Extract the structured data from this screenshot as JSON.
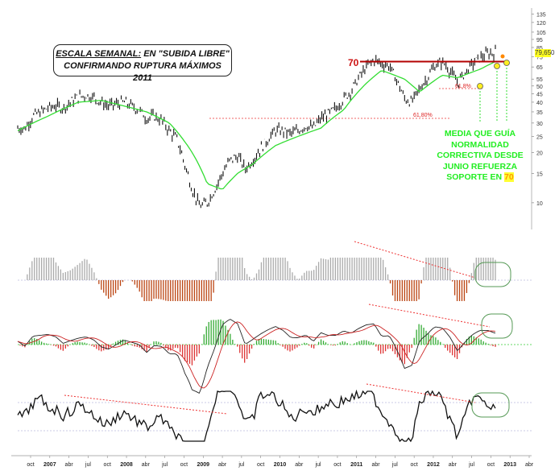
{
  "chart_data": {
    "type": "line",
    "title": "",
    "x_ticks": [
      "oct",
      "2007",
      "abr",
      "jul",
      "oct",
      "2008",
      "abr",
      "jul",
      "oct",
      "2009",
      "abr",
      "jul",
      "oct",
      "2010",
      "abr",
      "jul",
      "oct",
      "2011",
      "abr",
      "jul",
      "oct",
      "2012",
      "abr",
      "jul",
      "oct",
      "2013",
      "abr"
    ],
    "y_scale": "log",
    "y_ticks": [
      135,
      120,
      105,
      95,
      85,
      75,
      65,
      55,
      50,
      45,
      40,
      35,
      30,
      25,
      20,
      15,
      10
    ],
    "ylim": [
      8,
      140
    ],
    "last_price": "79,650",
    "resistance_level": 70,
    "resistance_label": "70",
    "fib_labels": [
      "61,8%",
      "61,80%"
    ],
    "annotation_box": {
      "line1_underlined": "ESCALA SEMANAL:",
      "line1_rest": " EN \"SUBIDA LIBRE\"",
      "line2": "CONFIRMANDO RUPTURA MÁXIMOS 2011"
    },
    "annotation_green": {
      "text": "MEDIA QUE GUÍA\nNORMALIDAD\nCORRECTIVA DESDE\nJUNIO REFUERZA\nSOPORTE EN ",
      "highlight": "70"
    },
    "price_series": [
      {
        "t": 0,
        "v": 28
      },
      {
        "t": 1,
        "v": 28
      },
      {
        "t": 2,
        "v": 33
      },
      {
        "t": 3,
        "v": 35
      },
      {
        "t": 4,
        "v": 37
      },
      {
        "t": 5,
        "v": 38
      },
      {
        "t": 6,
        "v": 37
      },
      {
        "t": 7,
        "v": 40
      },
      {
        "t": 8,
        "v": 43
      },
      {
        "t": 9,
        "v": 44
      },
      {
        "t": 10,
        "v": 43
      },
      {
        "t": 11,
        "v": 40
      },
      {
        "t": 12,
        "v": 38
      },
      {
        "t": 13,
        "v": 39
      },
      {
        "t": 14,
        "v": 40
      },
      {
        "t": 15,
        "v": 38
      },
      {
        "t": 16,
        "v": 36
      },
      {
        "t": 17,
        "v": 32
      },
      {
        "t": 18,
        "v": 33
      },
      {
        "t": 19,
        "v": 31
      },
      {
        "t": 20,
        "v": 27
      },
      {
        "t": 21,
        "v": 24
      },
      {
        "t": 22,
        "v": 17
      },
      {
        "t": 23,
        "v": 12
      },
      {
        "t": 24,
        "v": 9.5
      },
      {
        "t": 25,
        "v": 10
      },
      {
        "t": 26,
        "v": 12
      },
      {
        "t": 27,
        "v": 15
      },
      {
        "t": 28,
        "v": 18
      },
      {
        "t": 29,
        "v": 19
      },
      {
        "t": 30,
        "v": 16
      },
      {
        "t": 31,
        "v": 18
      },
      {
        "t": 32,
        "v": 21
      },
      {
        "t": 33,
        "v": 24
      },
      {
        "t": 34,
        "v": 27
      },
      {
        "t": 35,
        "v": 27
      },
      {
        "t": 36,
        "v": 26
      },
      {
        "t": 37,
        "v": 27
      },
      {
        "t": 38,
        "v": 29
      },
      {
        "t": 39,
        "v": 28
      },
      {
        "t": 40,
        "v": 32
      },
      {
        "t": 41,
        "v": 34
      },
      {
        "t": 42,
        "v": 37
      },
      {
        "t": 43,
        "v": 42
      },
      {
        "t": 44,
        "v": 47
      },
      {
        "t": 45,
        "v": 56
      },
      {
        "t": 46,
        "v": 65
      },
      {
        "t": 47,
        "v": 72
      },
      {
        "t": 48,
        "v": 68
      },
      {
        "t": 49,
        "v": 66
      },
      {
        "t": 50,
        "v": 54
      },
      {
        "t": 51,
        "v": 42
      },
      {
        "t": 52,
        "v": 40
      },
      {
        "t": 53,
        "v": 48
      },
      {
        "t": 54,
        "v": 56
      },
      {
        "t": 55,
        "v": 66
      },
      {
        "t": 56,
        "v": 70
      },
      {
        "t": 57,
        "v": 62
      },
      {
        "t": 58,
        "v": 52
      },
      {
        "t": 59,
        "v": 60
      },
      {
        "t": 60,
        "v": 68
      },
      {
        "t": 61,
        "v": 74
      },
      {
        "t": 62,
        "v": 78
      },
      {
        "t": 63,
        "v": 79.65
      }
    ],
    "ma_series": [
      {
        "t": 0,
        "v": 27
      },
      {
        "t": 4,
        "v": 33
      },
      {
        "t": 8,
        "v": 40
      },
      {
        "t": 11,
        "v": 41
      },
      {
        "t": 14,
        "v": 38
      },
      {
        "t": 17,
        "v": 35
      },
      {
        "t": 20,
        "v": 30
      },
      {
        "t": 23,
        "v": 20
      },
      {
        "t": 25,
        "v": 13
      },
      {
        "t": 27,
        "v": 12
      },
      {
        "t": 29,
        "v": 15
      },
      {
        "t": 31,
        "v": 17
      },
      {
        "t": 34,
        "v": 22
      },
      {
        "t": 37,
        "v": 25
      },
      {
        "t": 40,
        "v": 28
      },
      {
        "t": 43,
        "v": 36
      },
      {
        "t": 46,
        "v": 52
      },
      {
        "t": 48,
        "v": 62
      },
      {
        "t": 51,
        "v": 55
      },
      {
        "t": 53,
        "v": 46
      },
      {
        "t": 56,
        "v": 58
      },
      {
        "t": 58,
        "v": 56
      },
      {
        "t": 61,
        "v": 63
      },
      {
        "t": 63,
        "v": 70
      }
    ]
  }
}
